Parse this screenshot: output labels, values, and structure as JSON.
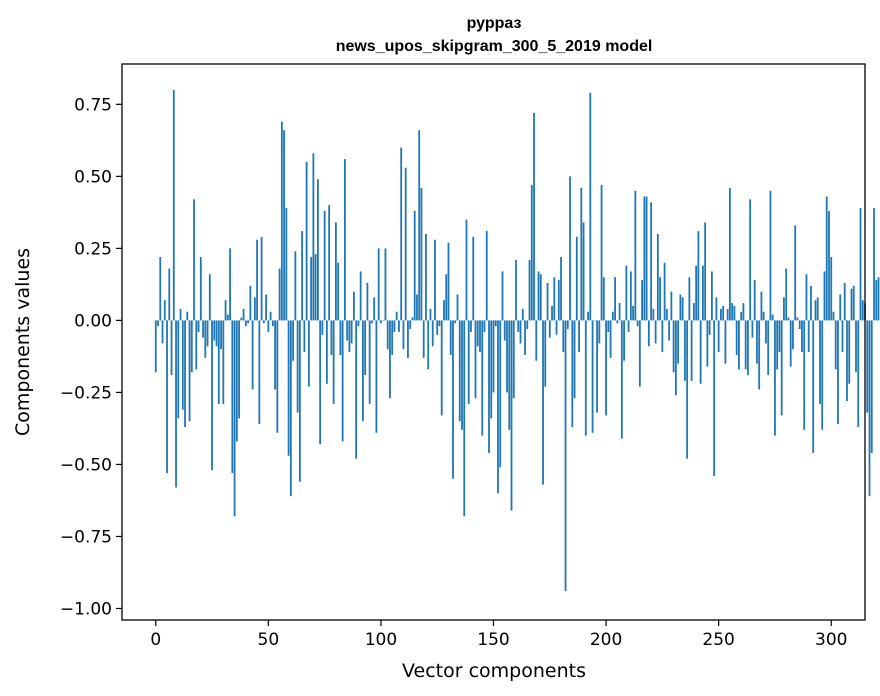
{
  "chart_data": {
    "type": "bar",
    "title_line1": "рурраз",
    "title_line2": "news_upos_skipgram_300_5_2019 model",
    "xlabel": "Vector components",
    "ylabel": "Components values",
    "xlim": [
      -15,
      315
    ],
    "ylim": [
      -1.04,
      0.89
    ],
    "xticks": [
      0,
      50,
      100,
      150,
      200,
      250,
      300
    ],
    "xtick_labels": [
      "0",
      "50",
      "100",
      "150",
      "200",
      "250",
      "300"
    ],
    "yticks": [
      0.75,
      0.5,
      0.25,
      0.0,
      -0.25,
      -0.5,
      -0.75,
      -1.0
    ],
    "ytick_labels": [
      "0.75",
      "0.50",
      "0.25",
      "0.00",
      "−0.25",
      "−0.50",
      "−0.75",
      "−1.00"
    ],
    "bar_color": "#1f77b4",
    "series": [
      {
        "name": "components",
        "values": [
          -0.18,
          -0.02,
          0.22,
          -0.08,
          0.07,
          -0.53,
          0.18,
          -0.19,
          0.8,
          -0.58,
          -0.34,
          0.04,
          -0.31,
          -0.37,
          0.03,
          -0.35,
          -0.18,
          0.42,
          -0.17,
          -0.04,
          0.22,
          -0.06,
          -0.13,
          -0.09,
          0.16,
          -0.52,
          -0.07,
          -0.09,
          -0.29,
          -0.1,
          -0.29,
          0.07,
          0.02,
          0.25,
          -0.53,
          -0.68,
          -0.42,
          -0.34,
          0.01,
          0.04,
          -0.02,
          -0.01,
          0.12,
          -0.24,
          0.08,
          0.28,
          -0.36,
          0.29,
          -0.01,
          0.09,
          -0.04,
          0.03,
          -0.02,
          -0.24,
          -0.39,
          0.18,
          0.69,
          0.66,
          0.39,
          -0.47,
          -0.61,
          -0.14,
          0.24,
          -0.32,
          -0.56,
          0.31,
          -0.11,
          0.55,
          -0.23,
          0.22,
          0.58,
          0.23,
          0.49,
          -0.43,
          -0.05,
          0.38,
          -0.22,
          0.4,
          -0.12,
          -0.29,
          0.34,
          0.2,
          -0.12,
          -0.42,
          0.56,
          -0.07,
          -0.11,
          -0.08,
          0.1,
          -0.48,
          -0.02,
          0.17,
          -0.35,
          -0.19,
          0.13,
          -0.29,
          -0.01,
          0.08,
          -0.39,
          0.25,
          -0.01,
          0.0,
          0.25,
          -0.1,
          -0.27,
          -0.12,
          -0.04,
          0.03,
          -0.04,
          0.6,
          -0.1,
          0.53,
          -0.13,
          -0.03,
          0.01,
          0.38,
          0.09,
          0.66,
          0.46,
          -0.13,
          0.3,
          -0.17,
          0.04,
          -0.09,
          0.28,
          -0.05,
          -0.02,
          -0.33,
          0.07,
          0.16,
          0.27,
          -0.12,
          -0.55,
          -0.01,
          0.09,
          -0.35,
          -0.38,
          -0.68,
          0.35,
          -0.29,
          -0.04,
          0.29,
          -0.27,
          -0.09,
          -0.11,
          -0.4,
          -0.04,
          0.31,
          -0.46,
          -0.34,
          -0.25,
          -0.02,
          -0.6,
          -0.51,
          0.17,
          -0.07,
          -0.25,
          -0.38,
          -0.66,
          -0.27,
          0.21,
          -0.04,
          -0.08,
          0.04,
          -0.12,
          -0.03,
          0.21,
          0.47,
          0.72,
          -0.14,
          0.17,
          0.16,
          -0.57,
          -0.23,
          0.13,
          -0.06,
          0.05,
          0.15,
          -0.05,
          0.14,
          0.22,
          -0.11,
          -0.94,
          -0.03,
          0.5,
          -0.37,
          -0.27,
          0.29,
          -0.11,
          0.46,
          0.34,
          -0.4,
          0.03,
          0.79,
          -0.39,
          0.0,
          -0.32,
          -0.08,
          0.47,
          0.15,
          -0.33,
          -0.04,
          -0.13,
          0.03,
          0.15,
          -0.01,
          0.06,
          -0.41,
          -0.14,
          0.19,
          -0.04,
          0.17,
          0.05,
          0.45,
          -0.02,
          -0.23,
          0.14,
          0.43,
          0.43,
          -0.09,
          0.41,
          0.04,
          -0.08,
          0.3,
          0.15,
          -0.11,
          0.2,
          0.04,
          -0.07,
          0.1,
          -0.18,
          -0.26,
          -0.15,
          0.09,
          0.08,
          -0.21,
          -0.48,
          0.15,
          -0.21,
          0.06,
          0.19,
          0.31,
          -0.22,
          0.19,
          0.34,
          -0.16,
          -0.05,
          0.17,
          -0.54,
          0.08,
          -0.11,
          0.04,
          0.05,
          -0.15,
          0.04,
          0.46,
          0.06,
          0.05,
          -0.12,
          -0.17,
          0.03,
          0.06,
          -0.17,
          -0.19,
          0.42,
          -0.06,
          0.14,
          -0.15,
          -0.24,
          0.1,
          0.03,
          -0.08,
          -0.19,
          0.45,
          0.02,
          -0.4,
          -0.17,
          -0.11,
          -0.33,
          0.08,
          0.18,
          0.01,
          -0.16,
          -0.1,
          0.33,
          0.01,
          -0.03,
          -0.11,
          -0.38,
          0.16,
          -0.11,
          0.12,
          -0.46,
          0.07,
          0.08,
          -0.29,
          -0.38,
          0.17,
          0.43,
          0.38,
          0.22,
          0.03,
          -0.17,
          -0.36,
          0.09,
          -0.11,
          0.13,
          -0.28,
          -0.22,
          0.11,
          0.12,
          -0.18,
          -0.37,
          0.39,
          0.07,
          0.06,
          -0.32,
          -0.61,
          -0.46,
          0.39,
          0.14,
          0.15
        ]
      }
    ]
  }
}
